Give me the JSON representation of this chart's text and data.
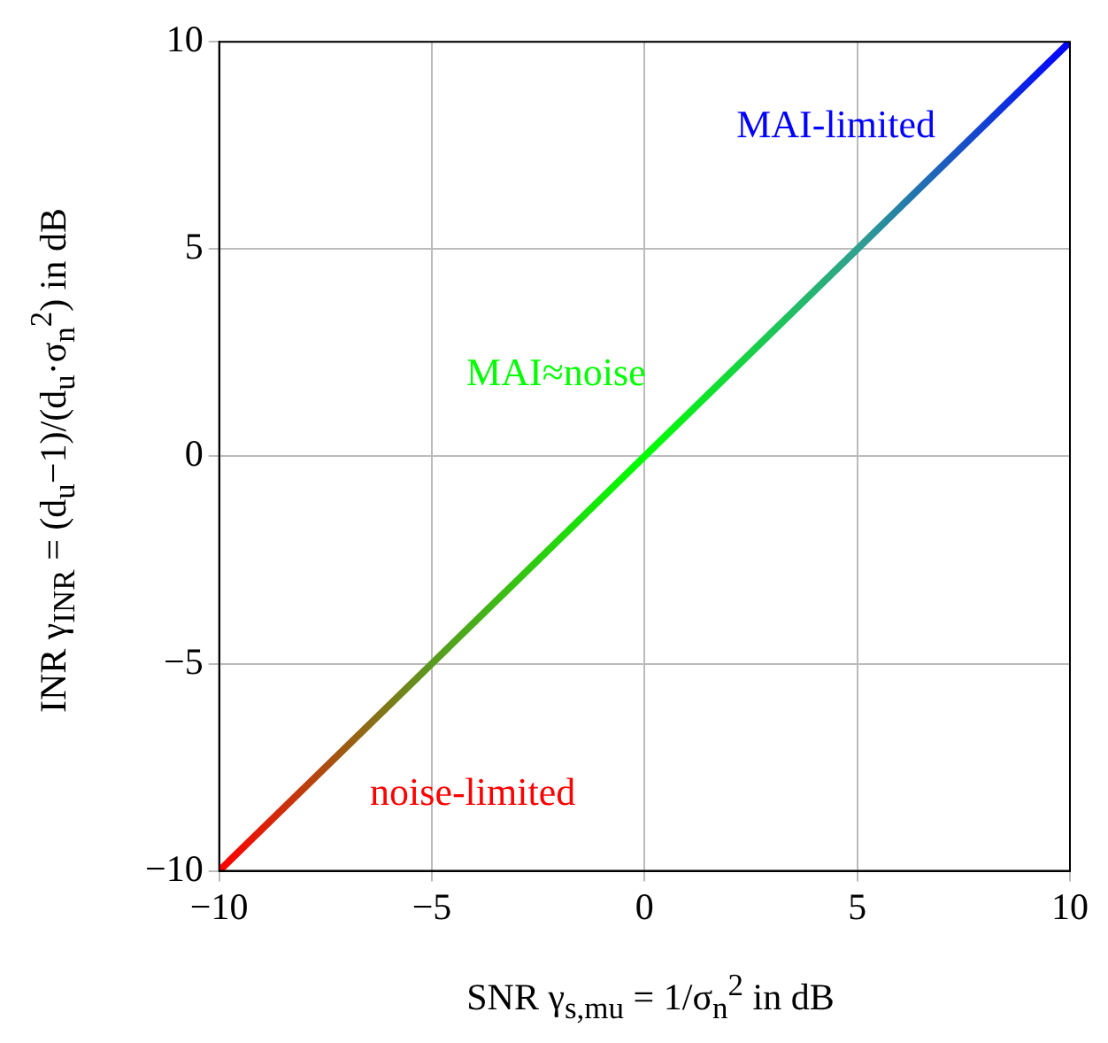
{
  "chart_data": {
    "type": "line",
    "xlabel": "SNR γ$_{s,mu}$ = 1/σ$_{n}$$^{2}$ in dB",
    "ylabel": "INR γ$_{INR}$ = (d$_{u}$−1)/(d$_{u}$·σ$_{n}$$^{2}$) in dB",
    "x": [
      -10,
      -5,
      0,
      5,
      10
    ],
    "series": [
      {
        "values": [
          -10,
          -5,
          0,
          5,
          10
        ],
        "colors": [
          "#ff0000",
          "#5a9a20",
          "#00ff00",
          "#30a090",
          "#0000ff"
        ]
      }
    ],
    "xlim": [
      -10,
      10
    ],
    "ylim": [
      -10,
      10
    ],
    "xticks": [
      -10,
      -5,
      0,
      5,
      10
    ],
    "yticks": [
      -10,
      -5,
      0,
      5,
      10
    ],
    "grid": true,
    "marker": "none",
    "annotations": [
      "MAI-limited",
      "MAI≈noise",
      "noise-limited"
    ]
  }
}
